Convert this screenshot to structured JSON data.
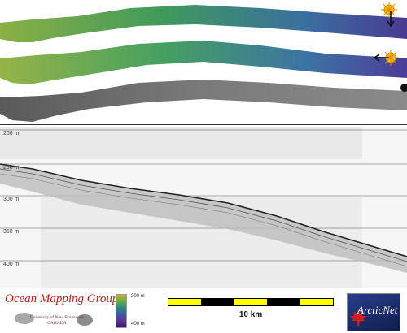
{
  "profile": {
    "depth_labels": [
      "200 m",
      "250 m",
      "300 m",
      "350 m",
      "400 m"
    ]
  },
  "legend": {
    "color_scale": {
      "top_label": "200 m",
      "bottom_label": "400 m",
      "colors": [
        "#c4b42a",
        "#69a846",
        "#2c8a7c",
        "#3c5aa4",
        "#5a3590",
        "#3a1866"
      ]
    },
    "scale_bar": {
      "label": "10 km",
      "segment_colors": [
        "#ffff00",
        "#000000",
        "#ffff00",
        "#000000",
        "#ffff00",
        "#000000"
      ]
    }
  },
  "logos": {
    "ocean_mapping_group": {
      "title": "Ocean Mapping Group",
      "university": "University of New Brunswick",
      "country": "CANADA"
    },
    "arcticnet": {
      "name": "ArcticNet"
    }
  },
  "icons": [
    "sun-direction-icon",
    "maple-leaf-icon"
  ],
  "colors": {
    "sun": "#f5c400",
    "sun_ray": "#e08a00",
    "omg_red": "#b0241c",
    "arcticnet_blue": "#1a2a6c"
  }
}
